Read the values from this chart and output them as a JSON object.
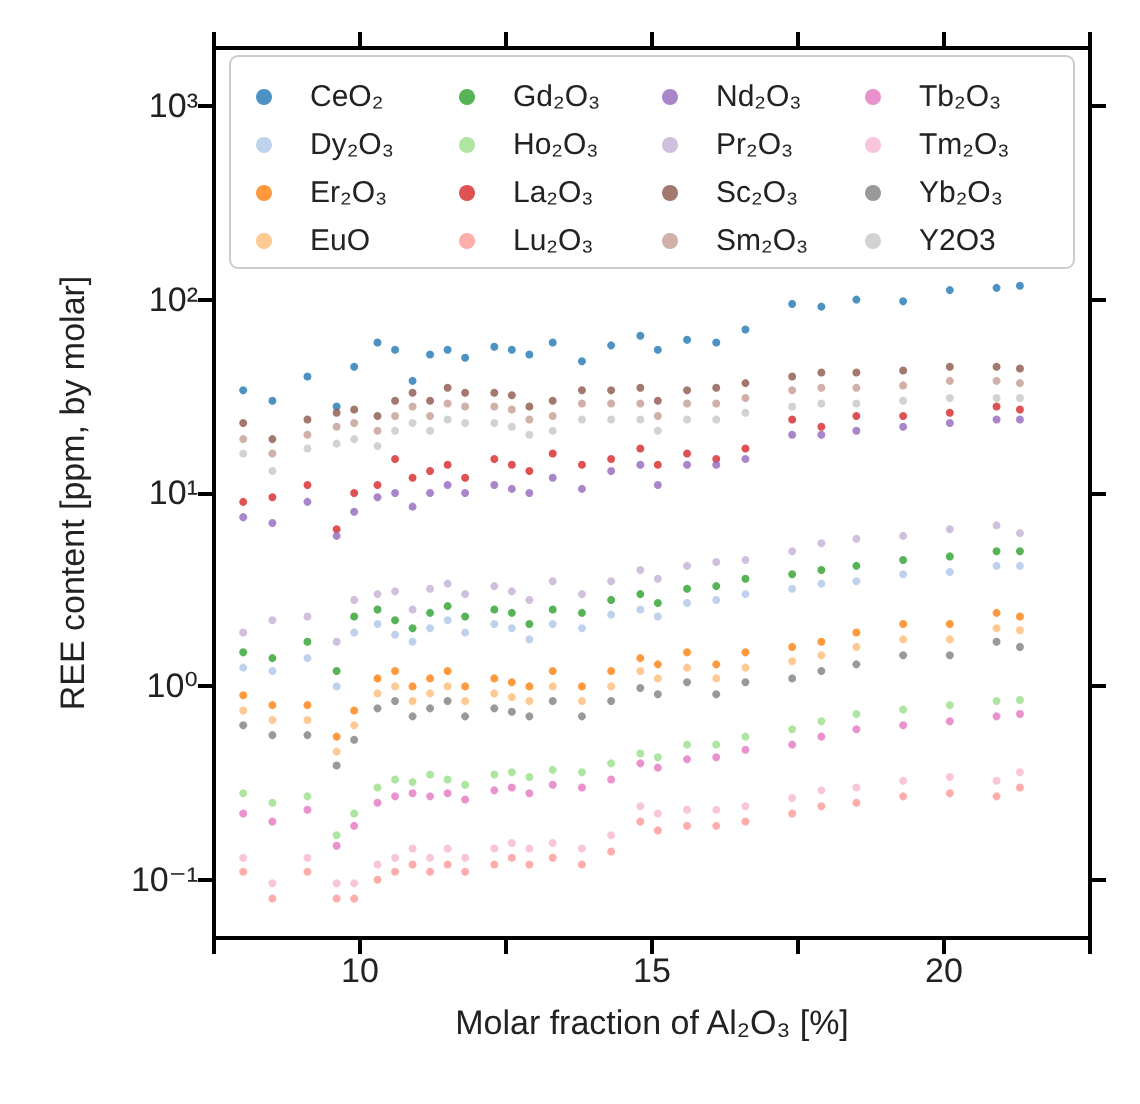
{
  "chart_data": {
    "type": "scatter",
    "xlabel": "Molar fraction of Al₂O₃ [%]",
    "ylabel": "REE content [ppm, by molar]",
    "x": [
      8.0,
      8.5,
      9.1,
      9.6,
      9.9,
      10.3,
      10.6,
      10.9,
      11.2,
      11.5,
      11.8,
      12.3,
      12.6,
      12.9,
      13.3,
      13.8,
      14.3,
      14.8,
      15.1,
      15.6,
      16.1,
      16.6,
      17.4,
      17.9,
      18.5,
      19.3,
      20.1,
      20.9,
      21.3
    ],
    "series": [
      {
        "name": "CeO₂",
        "color": "#1f77b4",
        "values": [
          34,
          30,
          40,
          28,
          45,
          60,
          55,
          38,
          52,
          55,
          50,
          57,
          55,
          52,
          60,
          48,
          58,
          65,
          55,
          62,
          60,
          70,
          95,
          92,
          100,
          98,
          112,
          115,
          118
        ]
      },
      {
        "name": "Dy₂O₃",
        "color": "#aec7e8",
        "values": [
          1.25,
          1.2,
          1.4,
          1.0,
          1.9,
          2.1,
          1.85,
          1.7,
          2.0,
          2.2,
          1.9,
          2.1,
          2.0,
          1.75,
          2.1,
          2.0,
          2.35,
          2.5,
          2.3,
          2.7,
          2.8,
          3.0,
          3.2,
          3.4,
          3.5,
          3.8,
          3.9,
          4.2,
          4.2
        ]
      },
      {
        "name": "Er₂O₃",
        "color": "#ff7f0e",
        "values": [
          0.9,
          0.8,
          0.8,
          0.55,
          0.75,
          1.1,
          1.2,
          1.0,
          1.1,
          1.2,
          1.0,
          1.1,
          1.05,
          1.0,
          1.2,
          1.0,
          1.2,
          1.4,
          1.3,
          1.5,
          1.3,
          1.5,
          1.6,
          1.7,
          1.9,
          2.1,
          2.1,
          2.4,
          2.3
        ]
      },
      {
        "name": "EuO",
        "color": "#ffbb78",
        "values": [
          0.75,
          0.67,
          0.67,
          0.46,
          0.63,
          0.92,
          1.0,
          0.84,
          0.92,
          1.0,
          0.84,
          0.92,
          0.88,
          0.84,
          1.0,
          0.84,
          1.0,
          1.2,
          1.1,
          1.25,
          1.1,
          1.25,
          1.35,
          1.45,
          1.6,
          1.75,
          1.75,
          2.0,
          1.95
        ]
      },
      {
        "name": "Gd₂O₃",
        "color": "#2ca02c",
        "values": [
          1.5,
          1.4,
          1.7,
          1.2,
          2.3,
          2.5,
          2.2,
          2.0,
          2.4,
          2.6,
          2.3,
          2.5,
          2.4,
          2.1,
          2.5,
          2.4,
          2.8,
          3.0,
          2.7,
          3.2,
          3.3,
          3.6,
          3.8,
          4.0,
          4.2,
          4.5,
          4.7,
          5.0,
          5.0
        ]
      },
      {
        "name": "Ho₂O₃",
        "color": "#98df8a",
        "values": [
          0.28,
          0.25,
          0.27,
          0.17,
          0.22,
          0.3,
          0.33,
          0.32,
          0.35,
          0.33,
          0.31,
          0.35,
          0.36,
          0.34,
          0.37,
          0.36,
          0.4,
          0.45,
          0.43,
          0.5,
          0.5,
          0.55,
          0.6,
          0.66,
          0.72,
          0.76,
          0.8,
          0.84,
          0.85
        ]
      },
      {
        "name": "La₂O₃",
        "color": "#d62728",
        "values": [
          9,
          9.5,
          11,
          6.5,
          10,
          11,
          15,
          12,
          13,
          14,
          12,
          15,
          14,
          13,
          16,
          14,
          15,
          17,
          14,
          16,
          15,
          17,
          24,
          22,
          25,
          25,
          26,
          28,
          27
        ]
      },
      {
        "name": "Lu₂O₃",
        "color": "#ff9896",
        "values": [
          0.11,
          0.08,
          0.11,
          0.08,
          0.08,
          0.1,
          0.11,
          0.12,
          0.11,
          0.12,
          0.11,
          0.12,
          0.13,
          0.12,
          0.13,
          0.12,
          0.14,
          0.2,
          0.18,
          0.19,
          0.19,
          0.2,
          0.22,
          0.24,
          0.25,
          0.27,
          0.28,
          0.27,
          0.3
        ]
      },
      {
        "name": "Nd₂O₃",
        "color": "#9467bd",
        "values": [
          7.5,
          7,
          9,
          6,
          8,
          9.5,
          10,
          8.5,
          10,
          11,
          10,
          11,
          10.5,
          10,
          12,
          10.5,
          13,
          14,
          11,
          14,
          14,
          15,
          20,
          20,
          21,
          22,
          23,
          24,
          24
        ]
      },
      {
        "name": "Pr₂O₃",
        "color": "#c5b0d5",
        "values": [
          1.9,
          2.2,
          2.3,
          1.7,
          2.8,
          3.0,
          3.1,
          2.5,
          3.2,
          3.4,
          3.0,
          3.3,
          3.1,
          2.8,
          3.5,
          3.0,
          3.5,
          4.0,
          3.6,
          4.2,
          4.4,
          4.5,
          5.0,
          5.5,
          5.8,
          6.0,
          6.5,
          6.8,
          6.2
        ]
      },
      {
        "name": "Sc₂O₃",
        "color": "#8c564b",
        "values": [
          23,
          19,
          24,
          26,
          27,
          25,
          30,
          33,
          30,
          35,
          33,
          33,
          32,
          28,
          30,
          34,
          34,
          35,
          30,
          34,
          35,
          37,
          40,
          42,
          42,
          43,
          45,
          45,
          44
        ]
      },
      {
        "name": "Sm₂O₃",
        "color": "#c49c94",
        "values": [
          19,
          16,
          20,
          22,
          23,
          21,
          25,
          28,
          25,
          29,
          28,
          28,
          27,
          24,
          25,
          29,
          29,
          29,
          25,
          29,
          29,
          31,
          34,
          35,
          35,
          36,
          38,
          38,
          37
        ]
      },
      {
        "name": "Tb₂O₃",
        "color": "#e377c2",
        "values": [
          0.22,
          0.2,
          0.23,
          0.15,
          0.19,
          0.25,
          0.27,
          0.28,
          0.27,
          0.28,
          0.26,
          0.29,
          0.3,
          0.28,
          0.31,
          0.3,
          0.33,
          0.4,
          0.38,
          0.42,
          0.43,
          0.47,
          0.5,
          0.55,
          0.6,
          0.63,
          0.66,
          0.7,
          0.72
        ]
      },
      {
        "name": "Tm₂O₃",
        "color": "#f7b6d2",
        "values": [
          0.13,
          0.096,
          0.13,
          0.096,
          0.096,
          0.12,
          0.13,
          0.145,
          0.13,
          0.145,
          0.13,
          0.145,
          0.155,
          0.145,
          0.155,
          0.145,
          0.17,
          0.24,
          0.22,
          0.23,
          0.23,
          0.24,
          0.265,
          0.29,
          0.3,
          0.325,
          0.34,
          0.325,
          0.36
        ]
      },
      {
        "name": "Yb₂O₃",
        "color": "#7f7f7f",
        "values": [
          0.63,
          0.56,
          0.56,
          0.39,
          0.53,
          0.77,
          0.84,
          0.7,
          0.77,
          0.84,
          0.7,
          0.77,
          0.74,
          0.7,
          0.84,
          0.7,
          0.84,
          0.98,
          0.91,
          1.05,
          0.91,
          1.05,
          1.1,
          1.2,
          1.3,
          1.45,
          1.45,
          1.7,
          1.6
        ]
      },
      {
        "name": "Y2O3",
        "color": "#c7c7c7",
        "values": [
          16,
          13,
          17,
          18,
          19,
          17.5,
          21,
          23,
          21,
          24,
          23,
          23,
          22,
          20,
          21,
          24,
          24,
          24,
          21,
          24,
          24,
          26,
          28,
          29,
          29,
          30,
          31,
          31,
          31
        ]
      }
    ],
    "xlim": [
      7.5,
      22.5
    ],
    "xticks": [
      {
        "value": 7.5,
        "label": null
      },
      10,
      {
        "value": 12.5,
        "label": null
      },
      15,
      {
        "value": 17.5,
        "label": null
      },
      20,
      {
        "value": 22.5,
        "label": null
      }
    ],
    "ylim": [
      0.05,
      2000
    ],
    "yticks": [
      {
        "value": 0.1,
        "label": "10⁻¹"
      },
      {
        "value": 1,
        "label": "10⁰"
      },
      {
        "value": 10,
        "label": "10¹"
      },
      {
        "value": 100,
        "label": "10²"
      },
      {
        "value": 1000,
        "label": "10³"
      }
    ],
    "log": "y",
    "grid": false,
    "legend": "top",
    "marker": "circle"
  }
}
